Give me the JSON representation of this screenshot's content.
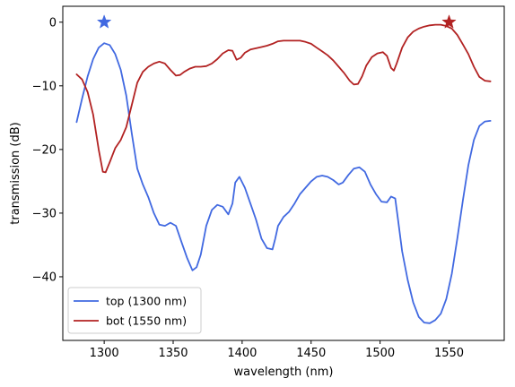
{
  "chart_data": {
    "type": "line",
    "xlabel": "wavelength (nm)",
    "ylabel": "transmission (dB)",
    "xlim": [
      1270,
      1590
    ],
    "ylim": [
      -50,
      2.5
    ],
    "x_ticks": [
      1300,
      1350,
      1400,
      1450,
      1500,
      1550
    ],
    "y_ticks": [
      0,
      -10,
      -20,
      -30,
      -40
    ],
    "grid": false,
    "legend_position": "lower-left",
    "series": [
      {
        "name": "top (1300 nm)",
        "color": "#4169e1",
        "points": [
          [
            1280,
            -15.7
          ],
          [
            1284,
            -12.0
          ],
          [
            1288,
            -8.5
          ],
          [
            1292,
            -5.8
          ],
          [
            1296,
            -4.0
          ],
          [
            1300,
            -3.3
          ],
          [
            1304,
            -3.6
          ],
          [
            1308,
            -5.0
          ],
          [
            1312,
            -7.5
          ],
          [
            1316,
            -11.5
          ],
          [
            1320,
            -17.5
          ],
          [
            1324,
            -23.0
          ],
          [
            1328,
            -25.5
          ],
          [
            1332,
            -27.5
          ],
          [
            1336,
            -30.0
          ],
          [
            1340,
            -31.8
          ],
          [
            1344,
            -32.0
          ],
          [
            1348,
            -31.5
          ],
          [
            1352,
            -32.0
          ],
          [
            1356,
            -34.5
          ],
          [
            1360,
            -37.0
          ],
          [
            1364,
            -39.0
          ],
          [
            1367,
            -38.5
          ],
          [
            1370,
            -36.5
          ],
          [
            1374,
            -32.0
          ],
          [
            1378,
            -29.5
          ],
          [
            1382,
            -28.7
          ],
          [
            1386,
            -29.0
          ],
          [
            1390,
            -30.2
          ],
          [
            1393,
            -28.5
          ],
          [
            1395,
            -25.2
          ],
          [
            1398,
            -24.3
          ],
          [
            1402,
            -26.0
          ],
          [
            1406,
            -28.5
          ],
          [
            1410,
            -31.0
          ],
          [
            1414,
            -34.0
          ],
          [
            1418,
            -35.5
          ],
          [
            1422,
            -35.7
          ],
          [
            1424,
            -34.0
          ],
          [
            1426,
            -32.0
          ],
          [
            1430,
            -30.6
          ],
          [
            1434,
            -29.8
          ],
          [
            1438,
            -28.5
          ],
          [
            1442,
            -27.0
          ],
          [
            1446,
            -26.0
          ],
          [
            1450,
            -25.0
          ],
          [
            1454,
            -24.3
          ],
          [
            1458,
            -24.1
          ],
          [
            1462,
            -24.3
          ],
          [
            1466,
            -24.8
          ],
          [
            1470,
            -25.5
          ],
          [
            1473,
            -25.2
          ],
          [
            1477,
            -24.0
          ],
          [
            1481,
            -23.0
          ],
          [
            1485,
            -22.8
          ],
          [
            1489,
            -23.5
          ],
          [
            1493,
            -25.5
          ],
          [
            1497,
            -27.0
          ],
          [
            1501,
            -28.2
          ],
          [
            1505,
            -28.3
          ],
          [
            1508,
            -27.4
          ],
          [
            1511,
            -27.7
          ],
          [
            1513,
            -31.0
          ],
          [
            1516,
            -36.0
          ],
          [
            1520,
            -40.5
          ],
          [
            1524,
            -44.0
          ],
          [
            1528,
            -46.3
          ],
          [
            1532,
            -47.2
          ],
          [
            1536,
            -47.3
          ],
          [
            1540,
            -46.8
          ],
          [
            1544,
            -45.8
          ],
          [
            1548,
            -43.5
          ],
          [
            1552,
            -39.5
          ],
          [
            1556,
            -34.0
          ],
          [
            1560,
            -28.0
          ],
          [
            1564,
            -22.5
          ],
          [
            1568,
            -18.5
          ],
          [
            1572,
            -16.3
          ],
          [
            1576,
            -15.6
          ],
          [
            1580,
            -15.5
          ]
        ]
      },
      {
        "name": "bot (1550 nm)",
        "color": "#b22222",
        "points": [
          [
            1280,
            -8.2
          ],
          [
            1284,
            -9.0
          ],
          [
            1288,
            -11.0
          ],
          [
            1292,
            -14.5
          ],
          [
            1296,
            -20.0
          ],
          [
            1299,
            -23.5
          ],
          [
            1301,
            -23.6
          ],
          [
            1304,
            -22.0
          ],
          [
            1308,
            -19.8
          ],
          [
            1312,
            -18.5
          ],
          [
            1316,
            -16.5
          ],
          [
            1320,
            -13.0
          ],
          [
            1324,
            -9.5
          ],
          [
            1328,
            -7.8
          ],
          [
            1332,
            -7.0
          ],
          [
            1336,
            -6.5
          ],
          [
            1340,
            -6.2
          ],
          [
            1344,
            -6.5
          ],
          [
            1348,
            -7.5
          ],
          [
            1352,
            -8.4
          ],
          [
            1355,
            -8.3
          ],
          [
            1358,
            -7.8
          ],
          [
            1362,
            -7.3
          ],
          [
            1366,
            -7.0
          ],
          [
            1370,
            -7.0
          ],
          [
            1374,
            -6.9
          ],
          [
            1378,
            -6.5
          ],
          [
            1382,
            -5.8
          ],
          [
            1386,
            -4.9
          ],
          [
            1390,
            -4.4
          ],
          [
            1393,
            -4.5
          ],
          [
            1396,
            -5.9
          ],
          [
            1399,
            -5.6
          ],
          [
            1402,
            -4.8
          ],
          [
            1406,
            -4.3
          ],
          [
            1410,
            -4.1
          ],
          [
            1414,
            -3.9
          ],
          [
            1418,
            -3.7
          ],
          [
            1422,
            -3.4
          ],
          [
            1426,
            -3.0
          ],
          [
            1430,
            -2.9
          ],
          [
            1434,
            -2.9
          ],
          [
            1438,
            -2.9
          ],
          [
            1442,
            -2.9
          ],
          [
            1446,
            -3.1
          ],
          [
            1450,
            -3.4
          ],
          [
            1454,
            -4.0
          ],
          [
            1458,
            -4.6
          ],
          [
            1462,
            -5.2
          ],
          [
            1466,
            -6.0
          ],
          [
            1470,
            -7.0
          ],
          [
            1474,
            -8.0
          ],
          [
            1478,
            -9.2
          ],
          [
            1481,
            -9.8
          ],
          [
            1484,
            -9.7
          ],
          [
            1487,
            -8.5
          ],
          [
            1490,
            -6.8
          ],
          [
            1494,
            -5.5
          ],
          [
            1498,
            -4.9
          ],
          [
            1502,
            -4.7
          ],
          [
            1505,
            -5.3
          ],
          [
            1508,
            -7.2
          ],
          [
            1510,
            -7.6
          ],
          [
            1512,
            -6.5
          ],
          [
            1516,
            -4.0
          ],
          [
            1520,
            -2.4
          ],
          [
            1524,
            -1.5
          ],
          [
            1528,
            -1.0
          ],
          [
            1532,
            -0.7
          ],
          [
            1536,
            -0.5
          ],
          [
            1540,
            -0.4
          ],
          [
            1544,
            -0.4
          ],
          [
            1548,
            -0.6
          ],
          [
            1552,
            -1.0
          ],
          [
            1556,
            -2.0
          ],
          [
            1560,
            -3.5
          ],
          [
            1564,
            -5.0
          ],
          [
            1568,
            -7.0
          ],
          [
            1572,
            -8.6
          ],
          [
            1576,
            -9.2
          ],
          [
            1580,
            -9.3
          ]
        ]
      }
    ],
    "markers": [
      {
        "series": "top (1300 nm)",
        "shape": "star",
        "x": 1300,
        "y": 0,
        "color": "#4169e1"
      },
      {
        "series": "bot (1550 nm)",
        "shape": "star",
        "x": 1550,
        "y": 0,
        "color": "#b22222"
      }
    ]
  }
}
